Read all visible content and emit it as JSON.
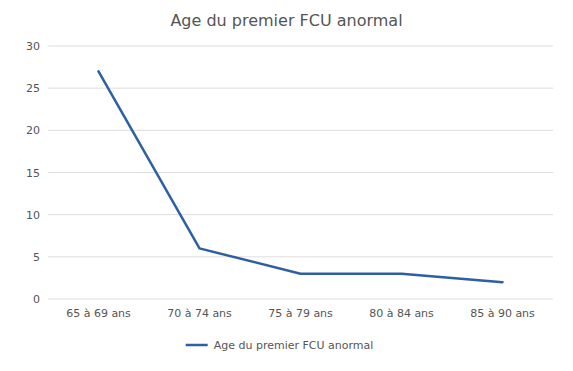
{
  "chart_data": {
    "type": "line",
    "title": "Age du premier FCU anormal",
    "categories": [
      "65 à 69 ans",
      "70 à 74 ans",
      "75 à 79 ans",
      "80 à 84 ans",
      "85 à 90 ans"
    ],
    "series": [
      {
        "name": "Age du premier FCU anormal",
        "color": "#2E5FA3",
        "values": [
          27,
          6,
          3,
          3,
          2
        ]
      }
    ],
    "ylim": [
      0,
      30
    ],
    "yticks": [
      0,
      5,
      10,
      15,
      20,
      25,
      30
    ],
    "grid": true,
    "legend": "bottom"
  }
}
